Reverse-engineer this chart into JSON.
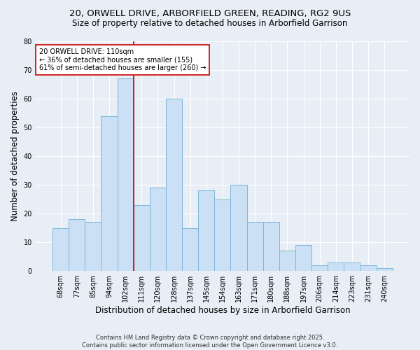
{
  "title1": "20, ORWELL DRIVE, ARBORFIELD GREEN, READING, RG2 9US",
  "title2": "Size of property relative to detached houses in Arborfield Garrison",
  "xlabel": "Distribution of detached houses by size in Arborfield Garrison",
  "ylabel": "Number of detached properties",
  "categories": [
    "68sqm",
    "77sqm",
    "85sqm",
    "94sqm",
    "102sqm",
    "111sqm",
    "120sqm",
    "128sqm",
    "137sqm",
    "145sqm",
    "154sqm",
    "163sqm",
    "171sqm",
    "180sqm",
    "188sqm",
    "197sqm",
    "206sqm",
    "214sqm",
    "223sqm",
    "231sqm",
    "240sqm"
  ],
  "values": [
    15,
    18,
    17,
    54,
    67,
    23,
    29,
    60,
    15,
    28,
    25,
    30,
    17,
    17,
    7,
    9,
    2,
    3,
    3,
    2,
    1
  ],
  "bar_color": "#cce0f5",
  "bar_edge_color": "#7ab8d9",
  "background_color": "#e8eef5",
  "grid_color": "#ffffff",
  "annotation_text": "20 ORWELL DRIVE: 110sqm\n← 36% of detached houses are smaller (155)\n61% of semi-detached houses are larger (260) →",
  "annotation_box_color": "#ffffff",
  "annotation_box_edge_color": "#cc0000",
  "vline_x_index": 4.5,
  "vline_color": "#cc0000",
  "ylim": [
    0,
    80
  ],
  "yticks": [
    0,
    10,
    20,
    30,
    40,
    50,
    60,
    70,
    80
  ],
  "footnote": "Contains HM Land Registry data © Crown copyright and database right 2025.\nContains public sector information licensed under the Open Government Licence v3.0.",
  "title_fontsize": 9.5,
  "subtitle_fontsize": 8.5,
  "axis_label_fontsize": 8.5,
  "tick_fontsize": 7,
  "annotation_fontsize": 7,
  "footnote_fontsize": 6
}
